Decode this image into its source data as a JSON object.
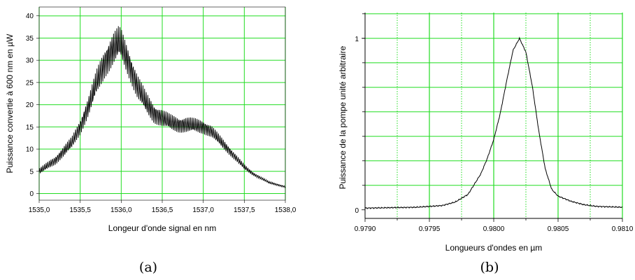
{
  "chart_data": [
    {
      "type": "line",
      "caption": "(a)",
      "xlabel": "Longeur d'onde signal en nm",
      "ylabel": "Puissance convertie à 600 nm en µW",
      "xlim": [
        1535.0,
        1538.0
      ],
      "ylim": [
        -1.5,
        42
      ],
      "grid": true,
      "grid_color": "#22dd22",
      "line_color": "#000000",
      "x_ticks": [
        "1535,0",
        "1535,5",
        "1536,0",
        "1536,5",
        "1537,0",
        "1537,5",
        "1538,0"
      ],
      "y_ticks": [
        "0",
        "5",
        "10",
        "15",
        "20",
        "25",
        "30",
        "35",
        "40"
      ],
      "series": [
        {
          "x": [
            1535.0,
            1535.2,
            1535.4,
            1535.5,
            1535.6,
            1535.7,
            1535.8,
            1535.9,
            1535.97,
            1536.0,
            1536.1,
            1536.2,
            1536.3,
            1536.4,
            1536.5,
            1536.6,
            1536.7,
            1536.8,
            1536.9,
            1537.0,
            1537.1,
            1537.2,
            1537.3,
            1537.4,
            1537.5,
            1537.6,
            1537.7,
            1537.8,
            1537.9,
            1538.0
          ],
          "y": [
            5.0,
            7.5,
            11.5,
            15.0,
            19.5,
            25.0,
            29.5,
            32.5,
            34.0,
            33.5,
            29.0,
            24.0,
            20.5,
            18.0,
            17.0,
            16.0,
            15.5,
            15.5,
            15.3,
            15.0,
            14.0,
            12.0,
            10.0,
            8.0,
            6.0,
            4.5,
            3.5,
            2.5,
            2.0,
            1.5
          ],
          "oscillation_amplitude": [
            0.7,
            1.0,
            1.4,
            1.8,
            2.3,
            3.0,
            3.5,
            3.8,
            3.8,
            3.6,
            3.3,
            2.9,
            2.5,
            2.2,
            2.0,
            1.9,
            1.8,
            1.8,
            1.7,
            1.6,
            1.4,
            1.2,
            1.0,
            0.8,
            0.6,
            0.4,
            0.3,
            0.25,
            0.2,
            0.2
          ]
        }
      ]
    },
    {
      "type": "line",
      "caption": "(b)",
      "xlabel": "Longueurs d'ondes en µm",
      "ylabel": "Puissance de la pompe unité arbitraire",
      "xlim": [
        0.979,
        0.981
      ],
      "ylim": [
        -0.05,
        1.15
      ],
      "grid": true,
      "grid_color": "#22dd22",
      "line_color": "#000000",
      "x_ticks": [
        "0.9790",
        "0.9795",
        "0.9800",
        "0.9805",
        "0.9810"
      ],
      "y_ticks": [
        "0",
        "1"
      ],
      "series": [
        {
          "x": [
            0.979,
            0.9794,
            0.9796,
            0.9797,
            0.9798,
            0.97985,
            0.9799,
            0.97995,
            0.98,
            0.98005,
            0.9801,
            0.98015,
            0.9802,
            0.98025,
            0.9803,
            0.98035,
            0.9804,
            0.98045,
            0.9805,
            0.9806,
            0.9807,
            0.9808,
            0.981
          ],
          "y": [
            0.01,
            0.015,
            0.025,
            0.045,
            0.09,
            0.15,
            0.21,
            0.3,
            0.41,
            0.56,
            0.75,
            0.93,
            1.0,
            0.92,
            0.72,
            0.46,
            0.24,
            0.12,
            0.08,
            0.05,
            0.03,
            0.02,
            0.015
          ]
        }
      ]
    }
  ]
}
